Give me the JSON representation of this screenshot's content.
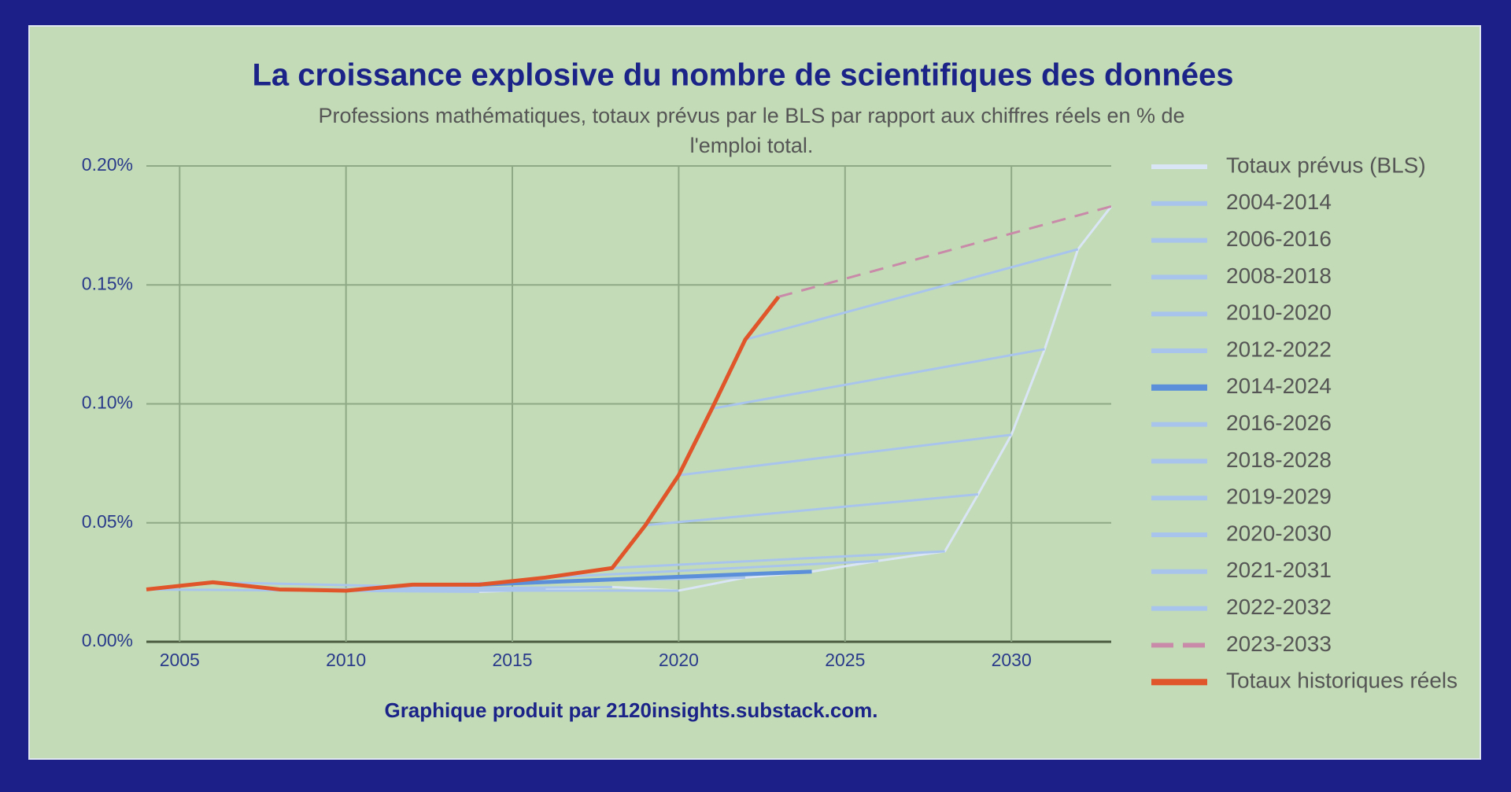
{
  "chart_data": {
    "type": "line",
    "title": "La croissance explosive du nombre de scientifiques des données",
    "subtitle": "Professions mathématiques, totaux prévus par le BLS par rapport aux chiffres réels en % de l'emploi total.",
    "footnote": "Graphique produit par 2120insights.substack.com.",
    "xlim": [
      2004,
      2033
    ],
    "xticks": [
      2005,
      2010,
      2015,
      2020,
      2025,
      2030
    ],
    "ylim": [
      0,
      0.2
    ],
    "yticks": [
      {
        "value": 0,
        "label": "0.00%"
      },
      {
        "value": 0.05,
        "label": "0.05%"
      },
      {
        "value": 0.1,
        "label": "0.10%"
      },
      {
        "value": 0.15,
        "label": "0.15%"
      },
      {
        "value": 0.2,
        "label": "0.20%"
      }
    ],
    "grid": true,
    "legend": "right",
    "series": [
      {
        "name": "Totaux prévus (BLS)",
        "color": "#d9e5f5",
        "x": [
          2014,
          2016,
          2018,
          2020,
          2022,
          2024,
          2026,
          2028,
          2029,
          2030,
          2031,
          2032,
          2033
        ],
        "values": [
          0.021,
          0.022,
          0.023,
          0.0215,
          0.027,
          0.0295,
          0.034,
          0.038,
          0.062,
          0.087,
          0.123,
          0.165,
          0.183
        ]
      },
      {
        "name": "2004-2014",
        "color": "#a9c4ec",
        "x": [
          2004,
          2014
        ],
        "values": [
          0.022,
          0.021
        ]
      },
      {
        "name": "2006-2016",
        "color": "#a9c4ec",
        "x": [
          2006,
          2016
        ],
        "values": [
          0.025,
          0.022
        ]
      },
      {
        "name": "2008-2018",
        "color": "#a9c4ec",
        "x": [
          2008,
          2018
        ],
        "values": [
          0.022,
          0.023
        ]
      },
      {
        "name": "2010-2020",
        "color": "#a9c4ec",
        "x": [
          2010,
          2020
        ],
        "values": [
          0.0215,
          0.0215
        ]
      },
      {
        "name": "2012-2022",
        "color": "#a9c4ec",
        "x": [
          2012,
          2022
        ],
        "values": [
          0.024,
          0.027
        ]
      },
      {
        "name": "2014-2024",
        "color": "#5b8fd9",
        "style": "bold",
        "x": [
          2014,
          2024
        ],
        "values": [
          0.024,
          0.0295
        ]
      },
      {
        "name": "2016-2026",
        "color": "#a9c4ec",
        "x": [
          2016,
          2026
        ],
        "values": [
          0.027,
          0.034
        ]
      },
      {
        "name": "2018-2028",
        "color": "#a9c4ec",
        "x": [
          2018,
          2028
        ],
        "values": [
          0.031,
          0.038
        ]
      },
      {
        "name": "2019-2029",
        "color": "#a9c4ec",
        "x": [
          2019,
          2029
        ],
        "values": [
          0.049,
          0.062
        ]
      },
      {
        "name": "2020-2030",
        "color": "#a9c4ec",
        "x": [
          2020,
          2030
        ],
        "values": [
          0.07,
          0.087
        ]
      },
      {
        "name": "2021-2031",
        "color": "#a9c4ec",
        "x": [
          2021,
          2031
        ],
        "values": [
          0.098,
          0.123
        ]
      },
      {
        "name": "2022-2032",
        "color": "#a9c4ec",
        "x": [
          2022,
          2032
        ],
        "values": [
          0.127,
          0.165
        ]
      },
      {
        "name": "2023-2033",
        "color": "#c88aa8",
        "style": "dashed",
        "x": [
          2023,
          2033
        ],
        "values": [
          0.145,
          0.183
        ]
      },
      {
        "name": "Totaux historiques réels",
        "color": "#e0552a",
        "style": "bold",
        "x": [
          2004,
          2006,
          2008,
          2010,
          2012,
          2014,
          2016,
          2018,
          2019,
          2020,
          2021,
          2022,
          2023
        ],
        "values": [
          0.022,
          0.025,
          0.022,
          0.0215,
          0.024,
          0.024,
          0.027,
          0.031,
          0.049,
          0.07,
          0.098,
          0.127,
          0.145
        ]
      }
    ]
  }
}
